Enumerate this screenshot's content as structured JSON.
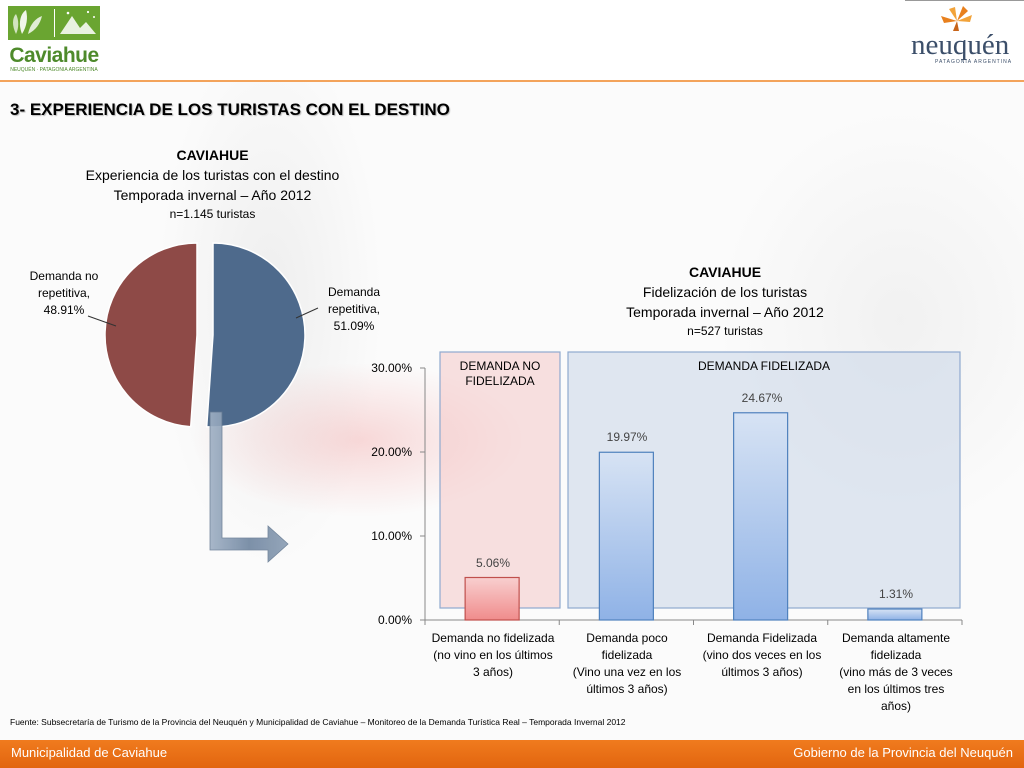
{
  "header": {
    "left_logo_name": "Caviahue",
    "left_logo_sub": "NEUQUÉN · PATAGONIA ARGENTINA",
    "right_logo_name": "neuquén",
    "right_logo_sub": "PATAGONIA ARGENTINA"
  },
  "section_title": "3- EXPERIENCIA DE LOS TURISTAS CON EL DESTINO",
  "chart_data": [
    {
      "type": "pie",
      "title": "CAVIAHUE",
      "subtitle_lines": [
        "Experiencia de los turistas con el destino",
        "Temporada invernal  – Año 2012"
      ],
      "sample": "n=1.145 turistas",
      "slices": [
        {
          "label_lines": [
            "Demanda no",
            "repetitiva,",
            "48.91%"
          ],
          "value": 48.91,
          "color": "#8e4a47"
        },
        {
          "label_lines": [
            "Demanda",
            "repetitiva,",
            "51.09%"
          ],
          "value": 51.09,
          "color": "#4e6a8c"
        }
      ]
    },
    {
      "type": "bar",
      "title": "CAVIAHUE",
      "subtitle_lines": [
        "Fidelización de los turistas",
        "Temporada invernal – Año 2012"
      ],
      "sample": "n=527 turistas",
      "y_ticks": [
        "30.00%",
        "20.00%",
        "10.00%",
        "0.00%"
      ],
      "ylim": [
        0,
        30
      ],
      "categories": [
        [
          "Demanda no fidelizada",
          "(no vino en los últimos",
          "3 años)"
        ],
        [
          "Demanda poco",
          "fidelizada",
          "(Vino una vez en los",
          "últimos 3 años)"
        ],
        [
          "Demanda Fidelizada",
          "(vino dos veces en los",
          "últimos 3 años)"
        ],
        [
          "Demanda altamente",
          "fidelizada",
          "(vino más de 3 veces",
          "en los últimos tres",
          "años)"
        ]
      ],
      "values": [
        5.06,
        19.97,
        24.67,
        1.31
      ],
      "value_labels": [
        "5.06%",
        "19.97%",
        "24.67%",
        "1.31%"
      ],
      "groups": [
        {
          "label_lines": [
            "DEMANDA NO",
            "FIDELIZADA"
          ],
          "color": "#f4c9c9"
        },
        {
          "label_lines": [
            "DEMANDA  FIDELIZADA"
          ],
          "color": "#c9d6e8"
        }
      ]
    }
  ],
  "footnote": "Fuente: Subsecretaría de Turismo de la Provincia del Neuquén y Municipalidad de Caviahue – Monitoreo de la Demanda Turística Real – Temporada Invernal 2012",
  "footer": {
    "left": "Municipalidad de Caviahue",
    "right": "Gobierno de la Provincia del Neuquén"
  }
}
